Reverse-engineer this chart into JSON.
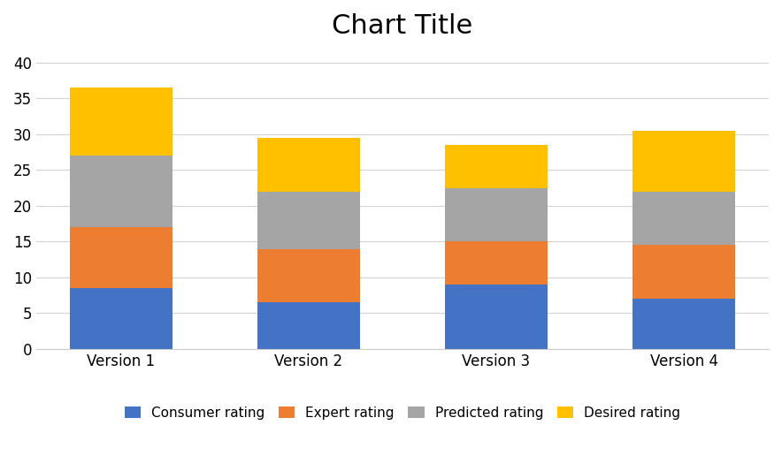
{
  "categories": [
    "Version 1",
    "Version 2",
    "Version 3",
    "Version 4"
  ],
  "consumer_rating": [
    8.5,
    6.5,
    9.0,
    7.0
  ],
  "expert_rating": [
    8.5,
    7.5,
    6.0,
    7.5
  ],
  "predicted_rating": [
    10.0,
    8.0,
    7.5,
    7.5
  ],
  "desired_rating": [
    9.5,
    7.5,
    6.0,
    8.5
  ],
  "colors": {
    "consumer": "#4472C4",
    "expert": "#ED7D31",
    "predicted": "#A5A5A5",
    "desired": "#FFC000"
  },
  "title": "Chart Title",
  "title_fontsize": 22,
  "legend_labels": [
    "Consumer rating",
    "Expert rating",
    "Predicted rating",
    "Desired rating"
  ],
  "ylim": [
    0,
    42
  ],
  "yticks": [
    0,
    5,
    10,
    15,
    20,
    25,
    30,
    35,
    40
  ],
  "bar_width": 0.55,
  "background_color": "#FFFFFF",
  "grid_color": "#D3D3D3",
  "tick_label_fontsize": 12,
  "legend_fontsize": 11
}
